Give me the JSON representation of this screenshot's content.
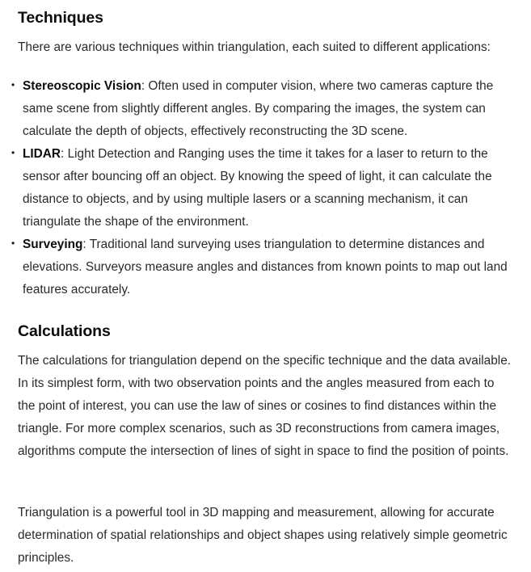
{
  "sections": {
    "techniques": {
      "heading": "Techniques",
      "intro": "There are various techniques within triangulation, each suited to different applications:",
      "items": [
        {
          "bullet": "•",
          "term": "Stereoscopic Vision",
          "text": ": Often used in computer vision, where two cameras capture the same scene from slightly different angles. By comparing the images, the system can calculate the depth of objects, effectively reconstructing the 3D scene."
        },
        {
          "bullet": "•",
          "term": "LIDAR",
          "text": ": Light Detection and Ranging uses the time it takes for a laser to return to the sensor after bouncing off an object. By knowing the speed of light, it can calculate the distance to objects, and by using multiple lasers or a scanning mechanism, it can triangulate the shape of the environment."
        },
        {
          "bullet": "•",
          "term": "Surveying",
          "text": ": Traditional land surveying uses triangulation to determine distances and elevations. Surveyors measure angles and distances from known points to map out land features accurately."
        }
      ]
    },
    "calculations": {
      "heading": "Calculations",
      "body": "The calculations for triangulation depend on the specific technique and the data available. In its simplest form, with two observation points and the angles measured from each to the point of interest, you can use the law of sines or cosines to find distances within the triangle. For more complex scenarios, such as 3D reconstructions from camera images, algorithms compute the intersection of lines of sight in space to find the position of points."
    },
    "summary": "Triangulation is a powerful tool in 3D mapping and measurement, allowing for accurate determination of spatial relationships and object shapes using relatively simple geometric principles."
  }
}
